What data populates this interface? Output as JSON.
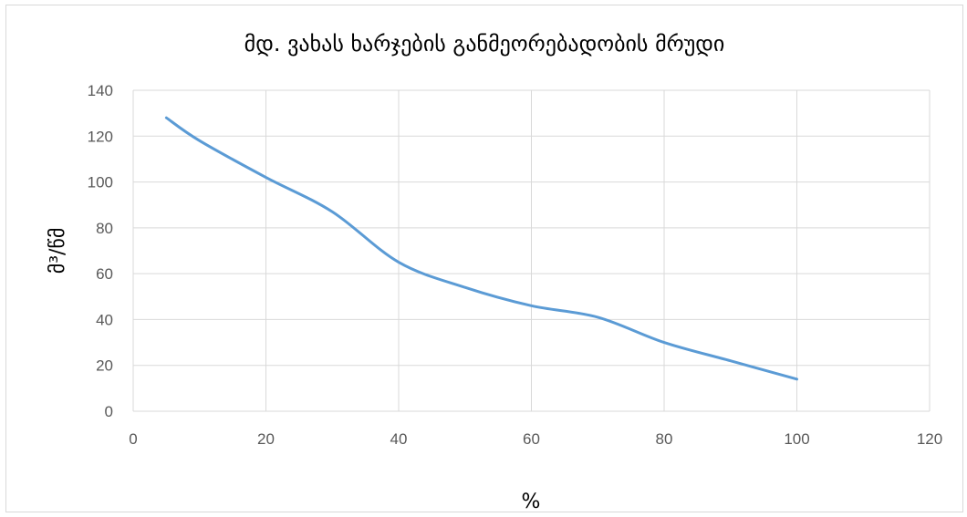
{
  "chart_data": {
    "type": "line",
    "title": "მდ. ვახას ხარჯების განმეორებადობის მრუდი",
    "xlabel": "%",
    "ylabel": "მ³/წმ",
    "xlim": [
      0,
      120
    ],
    "ylim": [
      0,
      140
    ],
    "x_ticks": [
      0,
      20,
      40,
      60,
      80,
      100,
      120
    ],
    "y_ticks": [
      0,
      20,
      40,
      60,
      80,
      100,
      120,
      140
    ],
    "x_tick_labels": [
      "0",
      "20",
      "40",
      "60",
      "80",
      "100",
      "120"
    ],
    "y_tick_labels": [
      "0",
      "20",
      "40",
      "60",
      "80",
      "100",
      "120",
      "140"
    ],
    "grid": true,
    "legend": "none",
    "line_color": "#5b9bd5",
    "series": [
      {
        "x": [
          5,
          10,
          20,
          30,
          40,
          50,
          60,
          70,
          80,
          90,
          100
        ],
        "y": [
          128,
          118,
          102,
          87,
          65,
          54,
          46,
          41,
          30,
          22,
          14
        ]
      }
    ]
  }
}
